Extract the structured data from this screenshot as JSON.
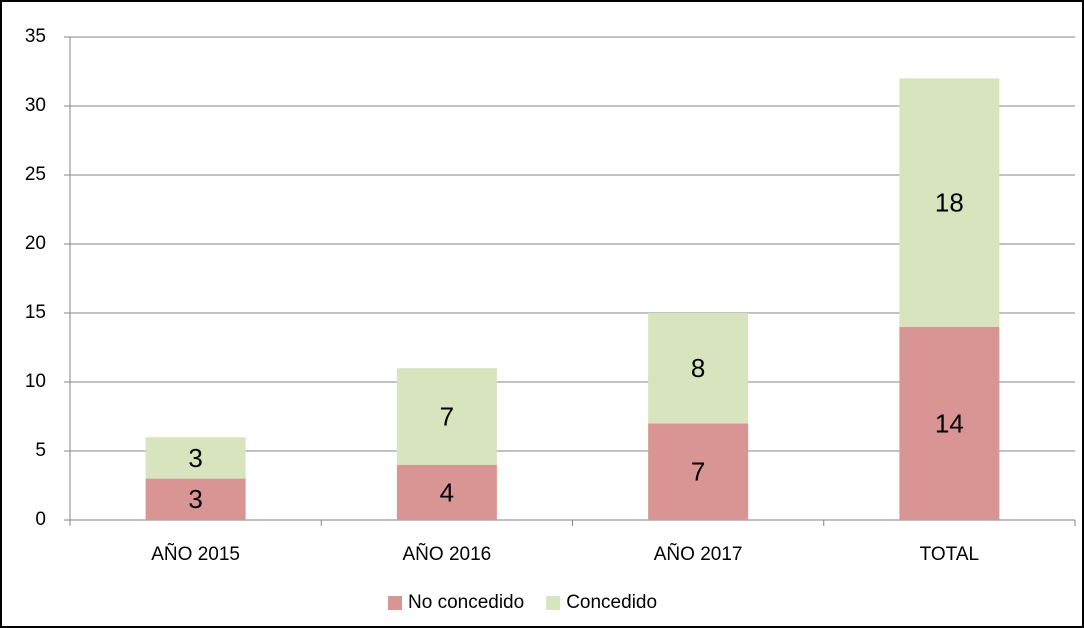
{
  "chart_data": {
    "type": "bar",
    "stacked": true,
    "data_labels": true,
    "categories": [
      "AÑO 2015",
      "AÑO 2016",
      "AÑO 2017",
      "TOTAL"
    ],
    "series": [
      {
        "name": "No concedido",
        "color": "#d99594",
        "values": [
          3,
          4,
          7,
          14
        ]
      },
      {
        "name": "Concedido",
        "color": "#d7e4bd",
        "values": [
          3,
          7,
          8,
          18
        ]
      }
    ],
    "ylim": [
      0,
      35
    ],
    "yticks": [
      0,
      5,
      10,
      15,
      20,
      25,
      30,
      35
    ],
    "grid": true,
    "legend": "bottom"
  }
}
